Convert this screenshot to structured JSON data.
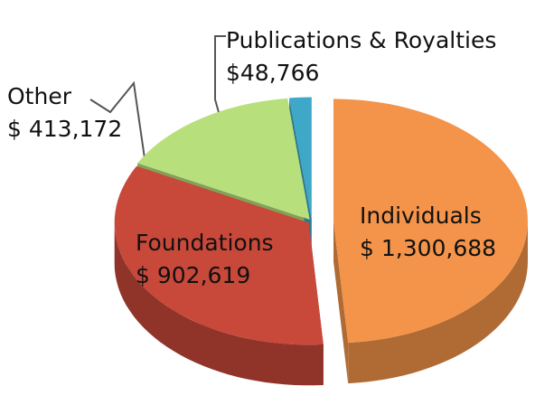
{
  "chart_data": {
    "type": "pie",
    "categories": [
      "Individuals",
      "Foundations",
      "Other",
      "Publications & Royalties"
    ],
    "values": [
      1300688,
      902619,
      413172,
      48766
    ],
    "value_labels": [
      "$ 1,300,688",
      "$ 902,619",
      "$ 413,172",
      "$48,766"
    ],
    "colors": [
      "#f4944a",
      "#c8483a",
      "#b7e07c",
      "#3fa8c8"
    ]
  }
}
